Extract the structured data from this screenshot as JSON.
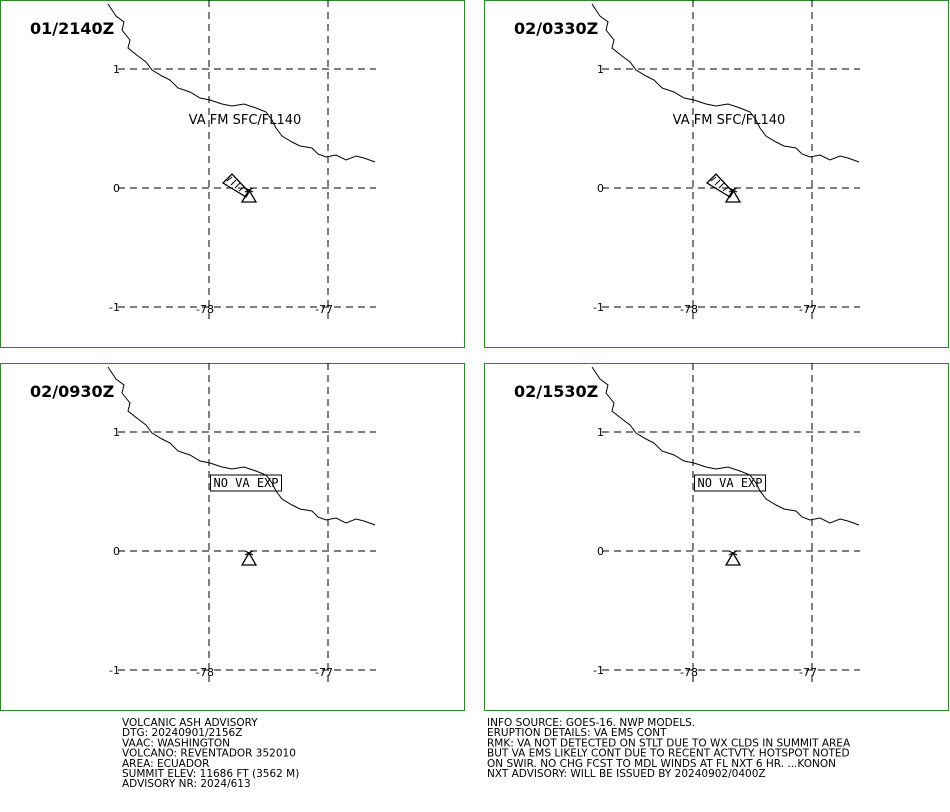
{
  "panels": [
    {
      "time": "01/2140Z",
      "label": "VA FM SFC/FL140"
    },
    {
      "time": "02/0330Z",
      "label": "VA FM SFC/FL140"
    },
    {
      "time": "02/0930Z",
      "label": "NO VA EXP"
    },
    {
      "time": "02/1530Z",
      "label": "NO VA EXP"
    }
  ],
  "map": {
    "lat_labels": [
      "1",
      "0",
      "-1"
    ],
    "lon_labels": [
      "-78",
      "-77"
    ]
  },
  "advisory": {
    "left": [
      "VOLCANIC ASH ADVISORY",
      "DTG: 20240901/2156Z",
      "VAAC: WASHINGTON",
      "VOLCANO: REVENTADOR 352010",
      "AREA: ECUADOR",
      "SUMMIT ELEV: 11686 FT (3562 M)",
      "ADVISORY NR: 2024/613"
    ],
    "right": [
      "INFO SOURCE: GOES-16. NWP MODELS.",
      "ERUPTION DETAILS: VA EMS CONT",
      "RMK: VA NOT DETECTED ON STLT DUE TO WX CLDS IN SUMMIT AREA",
      "BUT VA EMS LIKELY CONT DUE TO RECENT ACTVTY. HOTSPOT NOTED",
      "ON SWIR. NO CHG FCST TO MDL WINDS AT FL NXT 6 HR. ...KONON",
      "NXT ADVISORY: WILL BE ISSUED BY 20240902/0400Z"
    ]
  }
}
